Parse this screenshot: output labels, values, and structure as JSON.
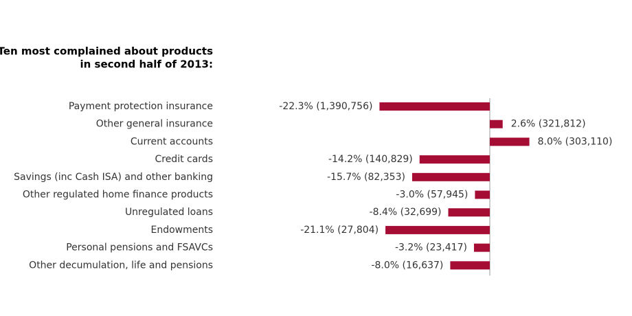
{
  "chart_data": {
    "type": "barh",
    "title": [
      "Ten most complained about products",
      "in second half of 2013:"
    ],
    "categories": [
      "Payment protection insurance",
      "Other general insurance",
      "Current accounts",
      "Credit cards",
      "Savings (inc Cash ISA) and other banking",
      "Other regulated home finance products",
      "Unregulated loans",
      "Endowments",
      "Personal pensions and FSAVCs",
      "Other decumulation, life and pensions"
    ],
    "values": [
      -22.3,
      2.6,
      8.0,
      -14.2,
      -15.7,
      -3.0,
      -8.4,
      -21.1,
      -3.2,
      -8.0
    ],
    "value_labels": [
      "-22.3% (1,390,756)",
      "2.6% (321,812)",
      "8.0% (303,110)",
      "-14.2% (140,829)",
      "-15.7% (82,353)",
      "-3.0% (57,945)",
      "-8.4% (32,699)",
      "-21.1% (27,804)",
      "-3.2% (23,417)",
      "-8.0% (16,637)"
    ],
    "color": "#a50d34",
    "xlim": [
      -25,
      10
    ]
  }
}
